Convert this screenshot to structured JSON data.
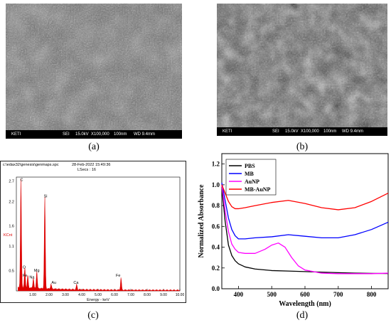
{
  "panels": {
    "a": {
      "caption": "(a)",
      "sem": {
        "org": "KETI",
        "mode": "SEI",
        "kv": "15.0kV",
        "mag": "X100,000",
        "scale": "100nm",
        "wd": "WD 9.4mm"
      }
    },
    "b": {
      "caption": "(b)",
      "sem": {
        "org": "KETI",
        "mode": "SEI",
        "kv": "15.0kV",
        "mag": "X100,000",
        "scale": "100nm",
        "wd": "WD 9.4mm"
      }
    },
    "c": {
      "caption": "(c)"
    },
    "d": {
      "caption": "(d)"
    }
  },
  "eds": {
    "file": "c:\\edax32\\genesis\\genmaps.spc",
    "date": "28-Feb-2022 15:49:36",
    "lsecs": "LSecs : 16",
    "ylabel": "KCnt",
    "xlabel": "Energy - keV",
    "yticks": [
      "2.7",
      "2.2",
      "1.6",
      "1.1",
      "0.5"
    ],
    "xticks": [
      "1.00",
      "2.00",
      "3.00",
      "4.00",
      "5.00",
      "6.00",
      "7.00",
      "8.00",
      "9.00",
      "10.00"
    ],
    "peaks": [
      {
        "el": "C",
        "kev": 0.28,
        "kcnt": 2.65
      },
      {
        "el": "O",
        "kev": 0.52,
        "kcnt": 0.5
      },
      {
        "el": "Fe",
        "kev": 0.7,
        "kcnt": 0.3
      },
      {
        "el": "Na",
        "kev": 1.04,
        "kcnt": 0.25
      },
      {
        "el": "Mg",
        "kev": 1.25,
        "kcnt": 0.42
      },
      {
        "el": "Si",
        "kev": 1.74,
        "kcnt": 2.25
      },
      {
        "el": "Au",
        "kev": 2.12,
        "kcnt": 0.12
      },
      {
        "el": "Ca",
        "kev": 3.69,
        "kcnt": 0.12
      },
      {
        "el": "Fe",
        "kev": 6.4,
        "kcnt": 0.3
      }
    ],
    "color": "#dd0000"
  },
  "chart_data": {
    "type": "line",
    "xlabel": "Wavelength (nm)",
    "ylabel": "Normalized Absorbance",
    "xlim": [
      350,
      850
    ],
    "ylim": [
      0.0,
      1.3
    ],
    "xticks": [
      400,
      500,
      600,
      700,
      800
    ],
    "yticks": [
      0.0,
      0.2,
      0.4,
      0.6,
      0.8,
      1.0,
      1.2
    ],
    "legend": "top-left",
    "series": [
      {
        "name": "PBS",
        "color": "#000000",
        "x": [
          350,
          360,
          370,
          380,
          390,
          400,
          420,
          450,
          500,
          550,
          600,
          650,
          700,
          750,
          800,
          850
        ],
        "y": [
          0.98,
          0.65,
          0.42,
          0.32,
          0.27,
          0.24,
          0.21,
          0.19,
          0.175,
          0.17,
          0.165,
          0.16,
          0.155,
          0.15,
          0.148,
          0.146
        ]
      },
      {
        "name": "MB",
        "color": "#0000ff",
        "x": [
          350,
          360,
          370,
          380,
          390,
          400,
          420,
          450,
          500,
          550,
          600,
          650,
          700,
          750,
          800,
          850
        ],
        "y": [
          1.02,
          0.85,
          0.68,
          0.57,
          0.51,
          0.48,
          0.48,
          0.49,
          0.5,
          0.52,
          0.505,
          0.49,
          0.49,
          0.52,
          0.57,
          0.64
        ]
      },
      {
        "name": "AuNP",
        "color": "#ff00ff",
        "x": [
          350,
          360,
          370,
          380,
          390,
          400,
          420,
          450,
          480,
          500,
          520,
          540,
          560,
          580,
          600,
          650,
          700,
          750,
          800,
          850
        ],
        "y": [
          1.0,
          0.75,
          0.55,
          0.43,
          0.38,
          0.35,
          0.34,
          0.34,
          0.38,
          0.42,
          0.44,
          0.4,
          0.3,
          0.22,
          0.18,
          0.15,
          0.145,
          0.145,
          0.145,
          0.15
        ]
      },
      {
        "name": "MB-AuNP",
        "color": "#ff0000",
        "x": [
          350,
          360,
          370,
          380,
          390,
          400,
          420,
          450,
          500,
          550,
          600,
          650,
          700,
          750,
          800,
          850
        ],
        "y": [
          1.0,
          0.92,
          0.84,
          0.79,
          0.77,
          0.77,
          0.78,
          0.8,
          0.83,
          0.85,
          0.82,
          0.78,
          0.76,
          0.78,
          0.84,
          0.92
        ]
      }
    ]
  }
}
